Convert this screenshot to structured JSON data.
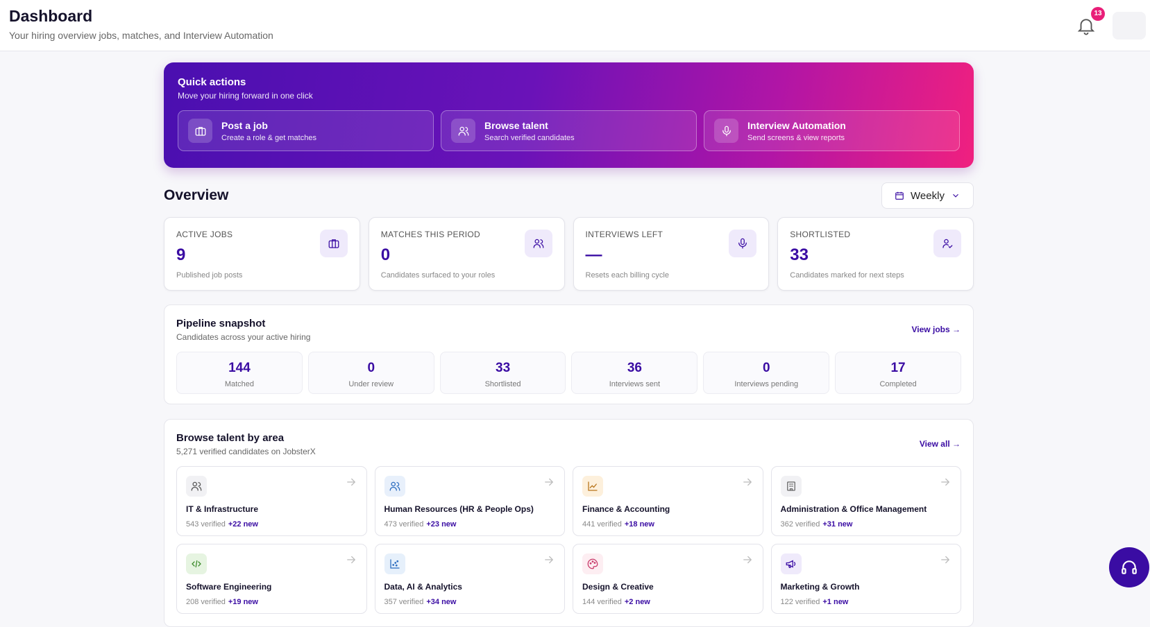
{
  "header": {
    "title": "Dashboard",
    "subtitle": "Your hiring overview jobs, matches, and Interview Automation",
    "notification_count": 13
  },
  "quick_actions": {
    "title": "Quick actions",
    "subtitle": "Move your hiring forward in one click",
    "items": [
      {
        "title": "Post a job",
        "subtitle": "Create a role & get matches"
      },
      {
        "title": "Browse talent",
        "subtitle": "Search verified candidates"
      },
      {
        "title": "Interview Automation",
        "subtitle": "Send screens & view reports"
      }
    ]
  },
  "overview": {
    "title": "Overview",
    "period": "Weekly",
    "cards": [
      {
        "label": "ACTIVE JOBS",
        "value": 9,
        "description": "Published job posts"
      },
      {
        "label": "MATCHES THIS PERIOD",
        "value": 0,
        "description": "Candidates surfaced to your roles"
      },
      {
        "label": "INTERVIEWS LEFT",
        "value": "—",
        "description": "Resets each billing cycle"
      },
      {
        "label": "SHORTLISTED",
        "value": 33,
        "description": "Candidates marked for next steps"
      }
    ]
  },
  "pipeline": {
    "title": "Pipeline snapshot",
    "subtitle": "Candidates across your active hiring",
    "link": "View jobs",
    "stages": [
      {
        "value": 144,
        "label": "Matched"
      },
      {
        "value": 0,
        "label": "Under review"
      },
      {
        "value": 33,
        "label": "Shortlisted"
      },
      {
        "value": 36,
        "label": "Interviews sent"
      },
      {
        "value": 0,
        "label": "Interviews pending"
      },
      {
        "value": 17,
        "label": "Completed"
      }
    ]
  },
  "talent": {
    "title": "Browse talent by area",
    "subtitle": "5,271 verified candidates on JobsterX",
    "link": "View all",
    "areas": [
      {
        "name": "IT & Infrastructure",
        "verified": "543 verified",
        "new": "+22 new"
      },
      {
        "name": "Human Resources (HR & People Ops)",
        "verified": "473 verified",
        "new": "+23 new"
      },
      {
        "name": "Finance & Accounting",
        "verified": "441 verified",
        "new": "+18 new"
      },
      {
        "name": "Administration & Office Management",
        "verified": "362 verified",
        "new": "+31 new"
      },
      {
        "name": "Software Engineering",
        "verified": "208 verified",
        "new": "+19 new"
      },
      {
        "name": "Data, AI & Analytics",
        "verified": "357 verified",
        "new": "+34 new"
      },
      {
        "name": "Design & Creative",
        "verified": "144 verified",
        "new": "+2 new"
      },
      {
        "name": "Marketing & Growth",
        "verified": "122 verified",
        "new": "+1 new"
      }
    ]
  }
}
